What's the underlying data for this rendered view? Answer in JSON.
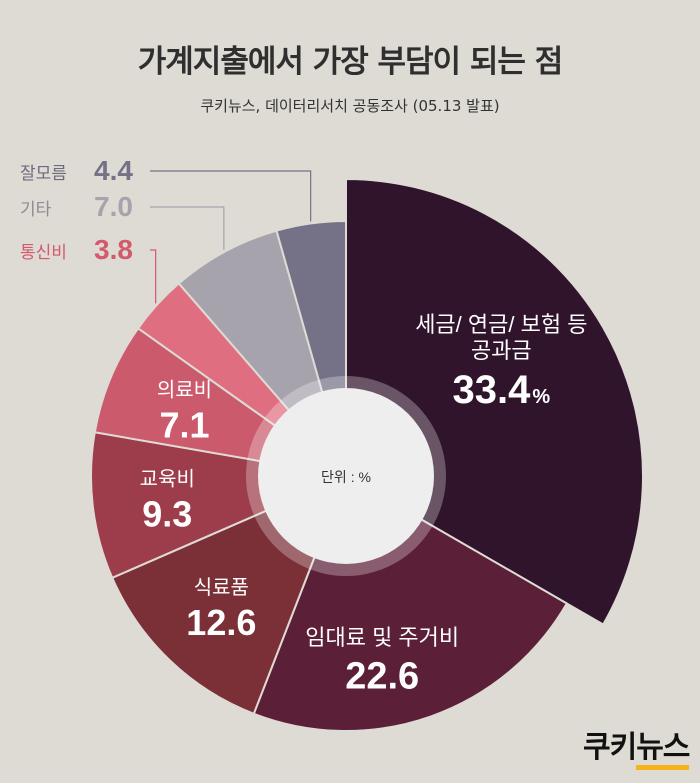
{
  "title": "가계지출에서 가장 부담이 되는 점",
  "subtitle": "쿠키뉴스, 데이터리서치 공동조사 (05.13 발표)",
  "logo": {
    "part1": "쿠키",
    "part2": "뉴스"
  },
  "colors": {
    "background": "#dedad4",
    "center": "#eeeeee"
  },
  "chart_data": {
    "type": "pie",
    "unit_label": "단위 : %",
    "slices": [
      {
        "label_lines": [
          "세금/ 연금/ 보험 등",
          "공과금"
        ],
        "value": 33.4,
        "value_text": "33.4",
        "suffix": "%",
        "color": "#30142b"
      },
      {
        "label_lines": [
          "임대료 및 주거비"
        ],
        "value": 22.6,
        "value_text": "22.6",
        "suffix": "",
        "color": "#5c1f38"
      },
      {
        "label_lines": [
          "식료품"
        ],
        "value": 12.6,
        "value_text": "12.6",
        "suffix": "",
        "color": "#7b2f37"
      },
      {
        "label_lines": [
          "교육비"
        ],
        "value": 9.3,
        "value_text": "9.3",
        "suffix": "",
        "color": "#9d3c4a"
      },
      {
        "label_lines": [
          "의료비"
        ],
        "value": 7.1,
        "value_text": "7.1",
        "suffix": "",
        "color": "#cb5a6c"
      },
      {
        "label_lines": [
          "통신비"
        ],
        "value": 3.8,
        "value_text": "3.8",
        "suffix": "",
        "color": "#df6f80",
        "callout": true,
        "label_color": "#d35a6c",
        "value_color": "#d35a6c"
      },
      {
        "label_lines": [
          "기타"
        ],
        "value": 7.0,
        "value_text": "7.0",
        "suffix": "",
        "color": "#a7a3ad",
        "callout": true,
        "label_color": "#8f8b94",
        "value_color": "#a7a3ad"
      },
      {
        "label_lines": [
          "잘모름"
        ],
        "value": 4.4,
        "value_text": "4.4",
        "suffix": "",
        "color": "#757288",
        "callout": true,
        "label_color": "#6d6a7e",
        "value_color": "#757288"
      }
    ]
  }
}
